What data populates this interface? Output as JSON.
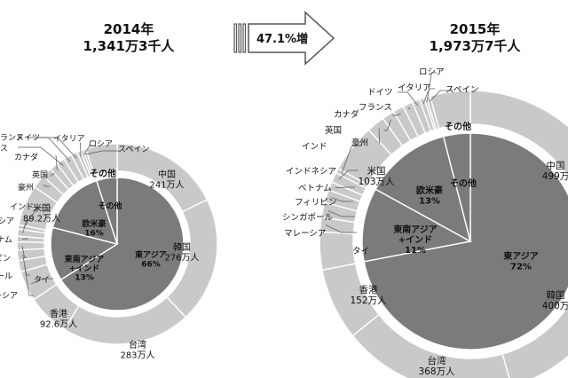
{
  "chart_data": [
    {
      "type": "pie",
      "title_year": "2014年",
      "title_total": "1,341万3千人",
      "inner_ring": [
        {
          "label": "東アジア",
          "percent_label": "66%",
          "value": 66
        },
        {
          "label": "東南アジア\n+インド",
          "percent_label": "13%",
          "value": 13
        },
        {
          "label": "欧米豪",
          "percent_label": "16%",
          "value": 16
        },
        {
          "label": "その他",
          "percent_label": "",
          "value": 5
        }
      ],
      "outer_ring": [
        {
          "label": "中国",
          "value_label": "241万人",
          "value": 241
        },
        {
          "label": "韓国",
          "value_label": "276万人",
          "value": 276
        },
        {
          "label": "台湾",
          "value_label": "283万人",
          "value": 283
        },
        {
          "label": "香港",
          "value_label": "92.6万人",
          "value": 92.6
        },
        {
          "label": "タイ",
          "value_label": "",
          "value": 66
        },
        {
          "label": "ーシア",
          "value_label": "",
          "value": 25
        },
        {
          "label": "ール",
          "value_label": "",
          "value": 23
        },
        {
          "label": "ピン",
          "value_label": "",
          "value": 18
        },
        {
          "label": "ナム",
          "value_label": "",
          "value": 12
        },
        {
          "label": "シア",
          "value_label": "",
          "value": 16
        },
        {
          "label": "インド",
          "value_label": "",
          "value": 9
        },
        {
          "label": "米国",
          "value_label": "89.2万人",
          "value": 89.2
        },
        {
          "label": "豪州",
          "value_label": "",
          "value": 30
        },
        {
          "label": "英国",
          "value_label": "",
          "value": 22
        },
        {
          "label": "カナダ",
          "value_label": "",
          "value": 18
        },
        {
          "label": "ス",
          "value_label": "",
          "value": 18
        },
        {
          "label": "ランス",
          "value_label": "",
          "value": 18
        },
        {
          "label": "ドイツ",
          "value_label": "",
          "value": 14
        },
        {
          "label": "イタリア",
          "value_label": "",
          "value": 8
        },
        {
          "label": "ロシア",
          "value_label": "",
          "value": 6
        },
        {
          "label": "スペイン",
          "value_label": "",
          "value": 6
        },
        {
          "label": "その他",
          "value_label": "",
          "value": 69
        }
      ]
    },
    {
      "type": "pie",
      "title_year": "2015年",
      "title_total": "1,973万7千人",
      "inner_ring": [
        {
          "label": "東アジア",
          "percent_label": "72%",
          "value": 72
        },
        {
          "label": "東南アジア\n+インド",
          "percent_label": "11%",
          "value": 11
        },
        {
          "label": "欧米豪",
          "percent_label": "13%",
          "value": 13
        },
        {
          "label": "その他",
          "percent_label": "",
          "value": 4
        }
      ],
      "outer_ring": [
        {
          "label": "中国",
          "value_label": "499万",
          "value": 499
        },
        {
          "label": "韓国",
          "value_label": "400万",
          "value": 400
        },
        {
          "label": "台湾",
          "value_label": "368万人",
          "value": 368
        },
        {
          "label": "香港",
          "value_label": "152万人",
          "value": 152
        },
        {
          "label": "タイ",
          "value_label": "",
          "value": 80
        },
        {
          "label": "マレーシア",
          "value_label": "",
          "value": 31
        },
        {
          "label": "シンガポール",
          "value_label": "",
          "value": 31
        },
        {
          "label": "フィリピン",
          "value_label": "",
          "value": 27
        },
        {
          "label": "ベトナム",
          "value_label": "",
          "value": 18
        },
        {
          "label": "インドネシア",
          "value_label": "",
          "value": 21
        },
        {
          "label": "インド",
          "value_label": "",
          "value": 10
        },
        {
          "label": "米国",
          "value_label": "103万人",
          "value": 103
        },
        {
          "label": "豪州",
          "value_label": "",
          "value": 38
        },
        {
          "label": "英国",
          "value_label": "",
          "value": 26
        },
        {
          "label": "カナダ",
          "value_label": "",
          "value": 23
        },
        {
          "label": "フランス",
          "value_label": "",
          "value": 21
        },
        {
          "label": "ドイツ",
          "value_label": "",
          "value": 16
        },
        {
          "label": "イタリア",
          "value_label": "",
          "value": 10
        },
        {
          "label": "ロシア",
          "value_label": "",
          "value": 5
        },
        {
          "label": "スペイン",
          "value_label": "",
          "value": 8
        },
        {
          "label": "その他",
          "value_label": "",
          "value": 85
        }
      ]
    }
  ],
  "growth": {
    "label": "47.1%増"
  },
  "colors": {
    "inner_fill": "#7b7b7b",
    "outer_fill": "#c9c9c9",
    "center_disc": "#ffffff",
    "stroke": "#ffffff",
    "leader": "#555555",
    "text": "#111111"
  }
}
